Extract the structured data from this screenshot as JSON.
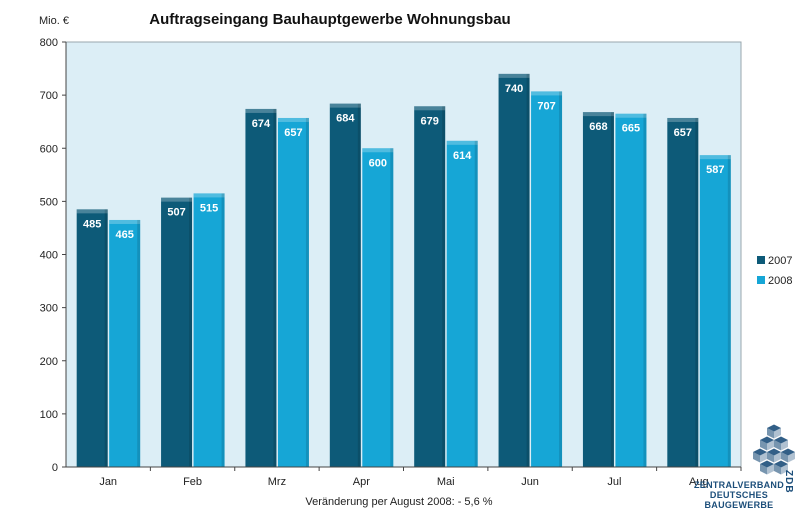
{
  "chart_data": {
    "type": "bar",
    "title": "Auftragseingang Bauhauptgewerbe Wohnungsbau",
    "ylabel": "Mio. €",
    "xlabel": "",
    "categories": [
      "Jan",
      "Feb",
      "Mrz",
      "Apr",
      "Mai",
      "Jun",
      "Jul",
      "Aug"
    ],
    "series": [
      {
        "name": "2007",
        "values": [
          485,
          507,
          674,
          684,
          679,
          740,
          668,
          657
        ],
        "color": "#0d5a78"
      },
      {
        "name": "2008",
        "values": [
          465,
          515,
          657,
          600,
          614,
          707,
          665,
          587
        ],
        "color": "#16a6d6"
      }
    ],
    "ylim": [
      0,
      800
    ],
    "yticks": [
      0,
      100,
      200,
      300,
      400,
      500,
      600,
      700,
      800
    ],
    "grid": false,
    "legend_position": "right",
    "plot_background": "#dceef6",
    "annotation": "Veränderung per August 2008:  - 5,6 %"
  },
  "logo": {
    "line1": "ZENTRALVERBAND",
    "line2": "DEUTSCHES",
    "line3": "BAUGEWERBE",
    "vertical": "ZDB",
    "color": "#1c4e7a"
  }
}
